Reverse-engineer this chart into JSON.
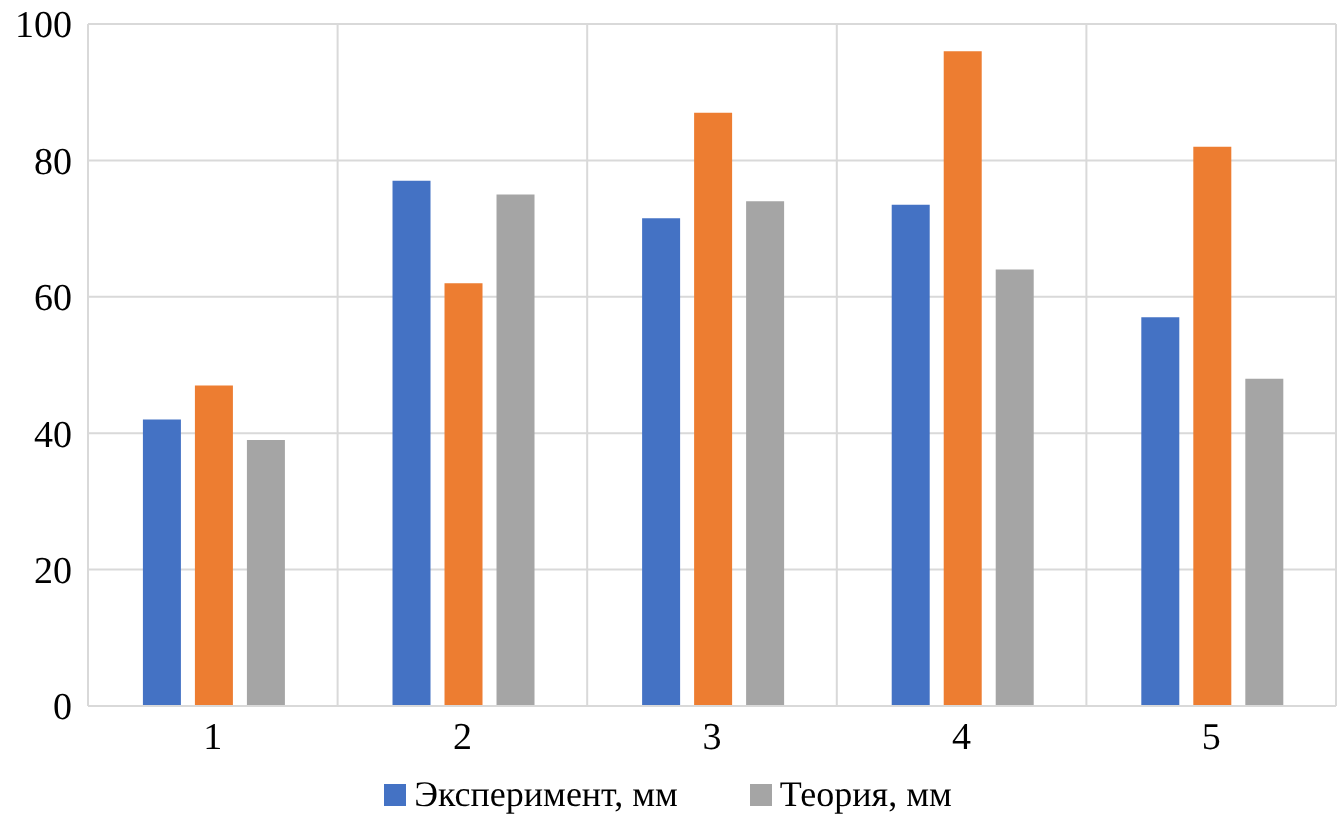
{
  "chart_data": {
    "type": "bar",
    "categories": [
      "1",
      "2",
      "3",
      "4",
      "5"
    ],
    "series": [
      {
        "name": "Эксперимент, мм",
        "color": "#4472c4",
        "values": [
          42,
          77,
          71.5,
          73.5,
          57
        ]
      },
      {
        "color": "#ed7d31",
        "values": [
          47,
          62,
          87,
          96,
          82
        ]
      },
      {
        "name": "Теория, мм",
        "color": "#a5a5a5",
        "values": [
          39,
          75,
          74,
          64,
          48
        ]
      }
    ],
    "ylim": [
      0,
      100
    ],
    "yticks": [
      0,
      20,
      40,
      60,
      80,
      100
    ],
    "grid": true,
    "legend": "bottom"
  }
}
